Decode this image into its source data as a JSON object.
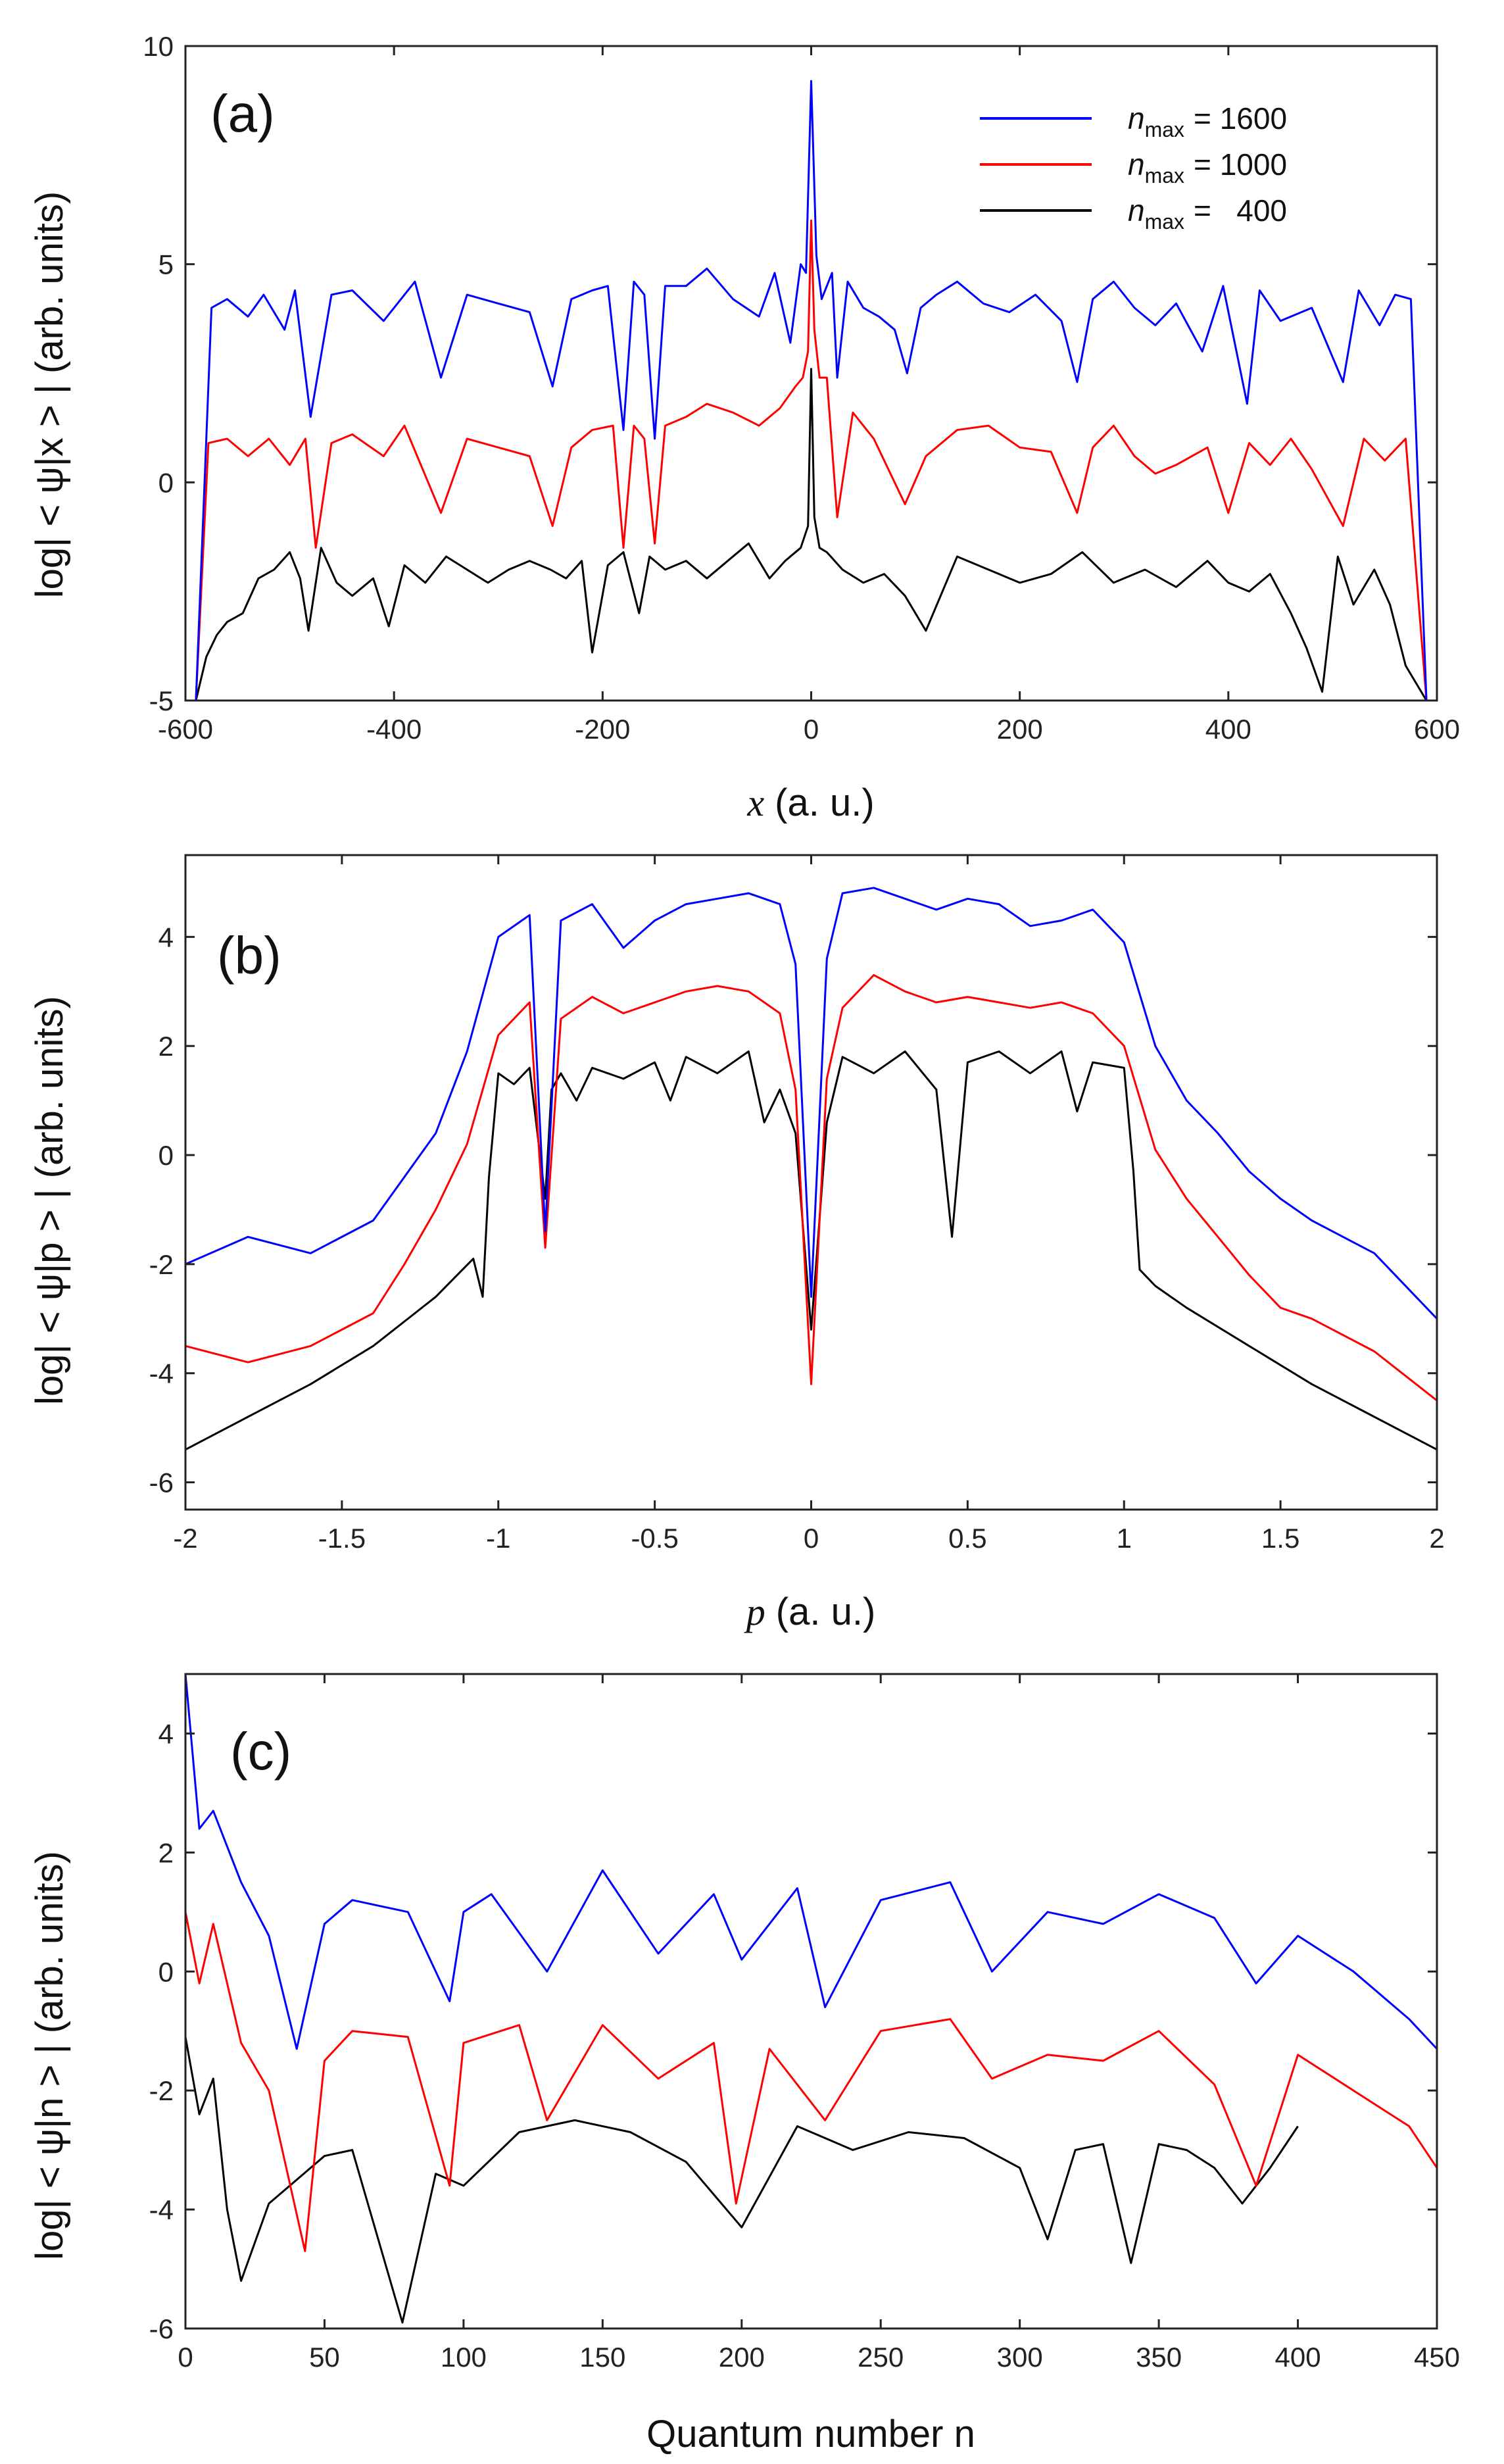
{
  "legend": {
    "title": "",
    "entries": [
      {
        "var": "n",
        "sub": "max",
        "value": "= 1600",
        "color": "#0000ff"
      },
      {
        "var": "n",
        "sub": "max",
        "value": "= 1000",
        "color": "#ff0000"
      },
      {
        "var": "n",
        "sub": "max",
        "value": "=   400",
        "color": "#000000"
      }
    ]
  },
  "chart_data": [
    {
      "type": "line",
      "panel_label": "(a)",
      "ylabel": "log| < ψ|x > | (arb. units)",
      "xlabel_var": "x",
      "xlabel_rest": " (a. u.)",
      "xlim": [
        -600,
        600
      ],
      "ylim": [
        -5,
        10
      ],
      "xticks": [
        -600,
        -400,
        -200,
        0,
        200,
        400,
        600
      ],
      "yticks": [
        -5,
        0,
        5,
        10
      ],
      "series": [
        {
          "name": "n_max = 1600",
          "color": "#0000ff",
          "x": [
            -590,
            -575,
            -560,
            -540,
            -525,
            -505,
            -495,
            -480,
            -460,
            -440,
            -410,
            -380,
            -355,
            -330,
            -300,
            -270,
            -248,
            -230,
            -210,
            -195,
            -180,
            -170,
            -160,
            -150,
            -140,
            -120,
            -100,
            -75,
            -50,
            -35,
            -20,
            -10,
            -5,
            0,
            5,
            10,
            20,
            25,
            35,
            50,
            65,
            80,
            92,
            105,
            120,
            140,
            165,
            190,
            215,
            240,
            255,
            270,
            290,
            310,
            330,
            350,
            375,
            395,
            418,
            430,
            450,
            480,
            510,
            525,
            545,
            560,
            575,
            590
          ],
          "y": [
            -5,
            4.0,
            4.2,
            3.8,
            4.3,
            3.5,
            4.4,
            1.5,
            4.3,
            4.4,
            3.7,
            4.6,
            2.4,
            4.3,
            4.1,
            3.9,
            2.2,
            4.2,
            4.4,
            4.5,
            1.2,
            4.6,
            4.3,
            1.0,
            4.5,
            4.5,
            4.9,
            4.2,
            3.8,
            4.8,
            3.2,
            5.0,
            4.8,
            9.2,
            5.2,
            4.2,
            4.8,
            2.4,
            4.6,
            4.0,
            3.8,
            3.5,
            2.5,
            4.0,
            4.3,
            4.6,
            4.1,
            3.9,
            4.3,
            3.7,
            2.3,
            4.2,
            4.6,
            4.0,
            3.6,
            4.1,
            3.0,
            4.5,
            1.8,
            4.4,
            3.7,
            4.0,
            2.3,
            4.4,
            3.6,
            4.3,
            4.2,
            -5
          ]
        },
        {
          "name": "n_max = 1000",
          "color": "#ff0000",
          "x": [
            -590,
            -578,
            -560,
            -540,
            -520,
            -500,
            -485,
            -475,
            -460,
            -440,
            -410,
            -390,
            -355,
            -330,
            -300,
            -270,
            -248,
            -230,
            -210,
            -190,
            -180,
            -170,
            -160,
            -150,
            -140,
            -120,
            -100,
            -75,
            -50,
            -30,
            -15,
            -8,
            -3,
            0,
            3,
            8,
            15,
            25,
            40,
            60,
            90,
            110,
            140,
            170,
            200,
            230,
            255,
            270,
            290,
            310,
            330,
            350,
            380,
            400,
            420,
            440,
            460,
            480,
            510,
            530,
            550,
            570,
            590
          ],
          "y": [
            -5,
            0.9,
            1.0,
            0.6,
            1.0,
            0.4,
            1.0,
            -1.5,
            0.9,
            1.1,
            0.6,
            1.3,
            -0.7,
            1.0,
            0.8,
            0.6,
            -1.0,
            0.8,
            1.2,
            1.3,
            -1.5,
            1.3,
            1.0,
            -1.4,
            1.3,
            1.5,
            1.8,
            1.6,
            1.3,
            1.7,
            2.2,
            2.4,
            3.0,
            6.0,
            3.5,
            2.4,
            2.4,
            -0.8,
            1.6,
            1.0,
            -0.5,
            0.6,
            1.2,
            1.3,
            0.8,
            0.7,
            -0.7,
            0.8,
            1.3,
            0.6,
            0.2,
            0.4,
            0.8,
            -0.7,
            0.9,
            0.4,
            1.0,
            0.3,
            -1.0,
            1.0,
            0.5,
            1.0,
            -5
          ]
        },
        {
          "name": "n_max = 400",
          "color": "#000000",
          "x": [
            -590,
            -580,
            -570,
            -560,
            -545,
            -530,
            -515,
            -500,
            -490,
            -482,
            -470,
            -455,
            -440,
            -420,
            -405,
            -390,
            -370,
            -350,
            -330,
            -310,
            -290,
            -270,
            -250,
            -235,
            -220,
            -210,
            -195,
            -180,
            -165,
            -155,
            -140,
            -120,
            -100,
            -80,
            -60,
            -40,
            -25,
            -10,
            -3,
            0,
            3,
            8,
            15,
            30,
            50,
            70,
            90,
            110,
            140,
            170,
            200,
            230,
            260,
            290,
            320,
            350,
            380,
            400,
            420,
            440,
            460,
            475,
            490,
            505,
            520,
            540,
            555,
            570,
            590
          ],
          "y": [
            -5,
            -4.0,
            -3.5,
            -3.2,
            -3.0,
            -2.2,
            -2.0,
            -1.6,
            -2.2,
            -3.4,
            -1.5,
            -2.3,
            -2.6,
            -2.2,
            -3.3,
            -1.9,
            -2.3,
            -1.7,
            -2.0,
            -2.3,
            -2.0,
            -1.8,
            -2.0,
            -2.2,
            -1.8,
            -3.9,
            -1.9,
            -1.6,
            -3.0,
            -1.7,
            -2.0,
            -1.8,
            -2.2,
            -1.8,
            -1.4,
            -2.2,
            -1.8,
            -1.5,
            -1.0,
            2.6,
            -0.8,
            -1.5,
            -1.6,
            -2.0,
            -2.3,
            -2.1,
            -2.6,
            -3.4,
            -1.7,
            -2.0,
            -2.3,
            -2.1,
            -1.6,
            -2.3,
            -2.0,
            -2.4,
            -1.8,
            -2.3,
            -2.5,
            -2.1,
            -3.0,
            -3.8,
            -4.8,
            -1.7,
            -2.8,
            -2.0,
            -2.8,
            -4.2,
            -5
          ]
        }
      ]
    },
    {
      "type": "line",
      "panel_label": "(b)",
      "ylabel": "log| < ψ|p > | (arb. units)",
      "xlabel_var": "p",
      "xlabel_rest": " (a. u.)",
      "xlim": [
        -2,
        2
      ],
      "ylim": [
        -6.5,
        5.5
      ],
      "xticks": [
        -2,
        -1.5,
        -1,
        -0.5,
        0,
        0.5,
        1,
        1.5,
        2
      ],
      "yticks": [
        -6,
        -4,
        -2,
        0,
        2,
        4
      ],
      "series": [
        {
          "name": "n_max = 1600",
          "color": "#0000ff",
          "x": [
            -2,
            -1.8,
            -1.6,
            -1.4,
            -1.3,
            -1.2,
            -1.1,
            -1.0,
            -0.9,
            -0.85,
            -0.8,
            -0.7,
            -0.6,
            -0.5,
            -0.4,
            -0.3,
            -0.2,
            -0.1,
            -0.05,
            0,
            0.05,
            0.1,
            0.2,
            0.3,
            0.4,
            0.5,
            0.6,
            0.7,
            0.8,
            0.9,
            1.0,
            1.1,
            1.2,
            1.3,
            1.4,
            1.5,
            1.6,
            1.8,
            2.0
          ],
          "y": [
            -2.0,
            -1.5,
            -1.8,
            -1.2,
            -0.4,
            0.4,
            1.9,
            4.0,
            4.4,
            -1.4,
            4.3,
            4.6,
            3.8,
            4.3,
            4.6,
            4.7,
            4.8,
            4.6,
            3.5,
            -2.6,
            3.6,
            4.8,
            4.9,
            4.7,
            4.5,
            4.7,
            4.6,
            4.2,
            4.3,
            4.5,
            3.9,
            2.0,
            1.0,
            0.4,
            -0.3,
            -0.8,
            -1.2,
            -1.8,
            -3.0
          ]
        },
        {
          "name": "n_max = 1000",
          "color": "#ff0000",
          "x": [
            -2,
            -1.8,
            -1.6,
            -1.4,
            -1.3,
            -1.2,
            -1.1,
            -1.0,
            -0.9,
            -0.85,
            -0.8,
            -0.7,
            -0.6,
            -0.5,
            -0.4,
            -0.3,
            -0.2,
            -0.1,
            -0.05,
            0,
            0.05,
            0.1,
            0.2,
            0.3,
            0.4,
            0.5,
            0.6,
            0.7,
            0.8,
            0.9,
            1.0,
            1.1,
            1.2,
            1.3,
            1.4,
            1.5,
            1.6,
            1.8,
            2.0
          ],
          "y": [
            -3.5,
            -3.8,
            -3.5,
            -2.9,
            -2.0,
            -1.0,
            0.2,
            2.2,
            2.8,
            -1.7,
            2.5,
            2.9,
            2.6,
            2.8,
            3.0,
            3.1,
            3.0,
            2.6,
            1.2,
            -4.2,
            1.4,
            2.7,
            3.3,
            3.0,
            2.8,
            2.9,
            2.8,
            2.7,
            2.8,
            2.6,
            2.0,
            0.1,
            -0.8,
            -1.5,
            -2.2,
            -2.8,
            -3.0,
            -3.6,
            -4.5
          ]
        },
        {
          "name": "n_max = 400",
          "color": "#000000",
          "x": [
            -2,
            -1.8,
            -1.6,
            -1.4,
            -1.2,
            -1.08,
            -1.05,
            -1.03,
            -1.0,
            -0.95,
            -0.9,
            -0.85,
            -0.83,
            -0.8,
            -0.75,
            -0.7,
            -0.6,
            -0.5,
            -0.45,
            -0.4,
            -0.3,
            -0.2,
            -0.15,
            -0.1,
            -0.05,
            0,
            0.05,
            0.1,
            0.2,
            0.3,
            0.4,
            0.45,
            0.5,
            0.6,
            0.7,
            0.8,
            0.85,
            0.9,
            1.0,
            1.03,
            1.05,
            1.1,
            1.2,
            1.4,
            1.6,
            1.8,
            2.0
          ],
          "y": [
            -5.4,
            -4.8,
            -4.2,
            -3.5,
            -2.6,
            -1.9,
            -2.6,
            -0.4,
            1.5,
            1.3,
            1.6,
            -0.8,
            1.2,
            1.5,
            1.0,
            1.6,
            1.4,
            1.7,
            1.0,
            1.8,
            1.5,
            1.9,
            0.6,
            1.2,
            0.4,
            -3.2,
            0.6,
            1.8,
            1.5,
            1.9,
            1.2,
            -1.5,
            1.7,
            1.9,
            1.5,
            1.9,
            0.8,
            1.7,
            1.6,
            -0.3,
            -2.1,
            -2.4,
            -2.8,
            -3.5,
            -4.2,
            -4.8,
            -5.4
          ]
        }
      ]
    },
    {
      "type": "line",
      "panel_label": "(c)",
      "ylabel": "log| < ψ|n > | (arb. units)",
      "xlabel": "Quantum number n",
      "xlim": [
        0,
        450
      ],
      "ylim": [
        -6,
        5
      ],
      "xticks": [
        0,
        50,
        100,
        150,
        200,
        250,
        300,
        350,
        400,
        450
      ],
      "yticks": [
        -6,
        -4,
        -2,
        0,
        2,
        4
      ],
      "series": [
        {
          "name": "n_max = 1600",
          "color": "#0000ff",
          "x": [
            0,
            5,
            10,
            20,
            30,
            40,
            50,
            60,
            80,
            95,
            100,
            110,
            130,
            150,
            170,
            190,
            200,
            220,
            230,
            250,
            275,
            290,
            310,
            330,
            350,
            370,
            385,
            400,
            420,
            440,
            450
          ],
          "y": [
            5.0,
            2.4,
            2.7,
            1.5,
            0.6,
            -1.3,
            0.8,
            1.2,
            1.0,
            -0.5,
            1.0,
            1.3,
            0.0,
            1.7,
            0.3,
            1.3,
            0.2,
            1.4,
            -0.6,
            1.2,
            1.5,
            0.0,
            1.0,
            0.8,
            1.3,
            0.9,
            -0.2,
            0.6,
            0.0,
            -0.8,
            -1.3
          ]
        },
        {
          "name": "n_max = 1000",
          "color": "#ff0000",
          "x": [
            0,
            5,
            10,
            20,
            30,
            43,
            50,
            60,
            80,
            95,
            100,
            120,
            130,
            150,
            170,
            190,
            198,
            210,
            230,
            250,
            275,
            290,
            310,
            330,
            350,
            370,
            385,
            400,
            420,
            440,
            450
          ],
          "y": [
            1.0,
            -0.2,
            0.8,
            -1.2,
            -2.0,
            -4.7,
            -1.5,
            -1.0,
            -1.1,
            -3.6,
            -1.2,
            -0.9,
            -2.5,
            -0.9,
            -1.8,
            -1.2,
            -3.9,
            -1.3,
            -2.5,
            -1.0,
            -0.8,
            -1.8,
            -1.4,
            -1.5,
            -1.0,
            -1.9,
            -3.6,
            -1.4,
            -2.0,
            -2.6,
            -3.3
          ]
        },
        {
          "name": "n_max = 400",
          "color": "#000000",
          "x": [
            0,
            5,
            10,
            15,
            20,
            30,
            40,
            50,
            60,
            78,
            90,
            100,
            120,
            140,
            160,
            180,
            200,
            220,
            240,
            260,
            280,
            300,
            310,
            320,
            330,
            340,
            350,
            360,
            370,
            380,
            390,
            400
          ],
          "y": [
            -1.1,
            -2.4,
            -1.8,
            -4.0,
            -5.2,
            -3.9,
            -3.5,
            -3.1,
            -3.0,
            -5.9,
            -3.4,
            -3.6,
            -2.7,
            -2.5,
            -2.7,
            -3.2,
            -4.3,
            -2.6,
            -3.0,
            -2.7,
            -2.8,
            -3.3,
            -4.5,
            -3.0,
            -2.9,
            -4.9,
            -2.9,
            -3.0,
            -3.3,
            -3.9,
            -3.3,
            -2.6
          ]
        }
      ]
    }
  ]
}
